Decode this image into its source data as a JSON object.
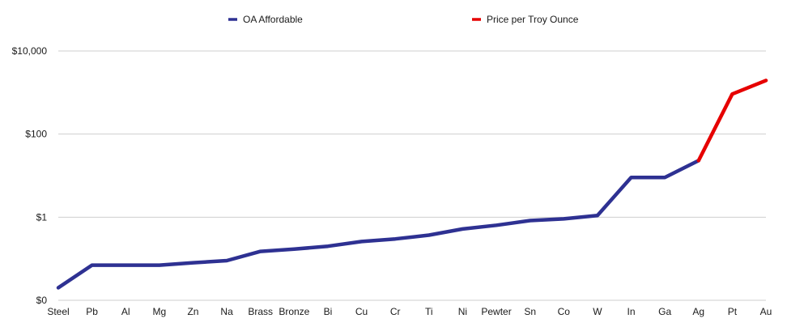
{
  "chart_data": {
    "type": "line",
    "title": "",
    "xlabel": "",
    "ylabel": "",
    "y_scale": "log",
    "ylim": [
      0.01,
      10000
    ],
    "grid": true,
    "legend_placement": "top",
    "categories": [
      "Steel",
      "Pb",
      "Al",
      "Mg",
      "Zn",
      "Na",
      "Brass",
      "Bronze",
      "Bi",
      "Cu",
      "Cr",
      "Ti",
      "Ni",
      "Pewter",
      "Sn",
      "Co",
      "W",
      "In",
      "Ga",
      "Ag",
      "Pt",
      "Au"
    ],
    "y_ticks": [
      {
        "value": 0.01,
        "label": "$0"
      },
      {
        "value": 1,
        "label": "$1"
      },
      {
        "value": 100,
        "label": "$100"
      },
      {
        "value": 10000,
        "label": "$10,000"
      }
    ],
    "series": [
      {
        "name": "OA Affordable",
        "color": "#2e3192",
        "values": [
          0.02,
          0.07,
          0.07,
          0.07,
          0.08,
          0.09,
          0.15,
          0.17,
          0.2,
          0.26,
          0.3,
          0.37,
          0.52,
          0.64,
          0.83,
          0.91,
          1.1,
          9,
          9,
          23,
          null,
          null
        ]
      },
      {
        "name": "Price per Troy Ounce",
        "color": "#e60000",
        "values": [
          null,
          null,
          null,
          null,
          null,
          null,
          null,
          null,
          null,
          null,
          null,
          null,
          null,
          null,
          null,
          null,
          null,
          null,
          null,
          23,
          920,
          1950
        ]
      }
    ]
  }
}
